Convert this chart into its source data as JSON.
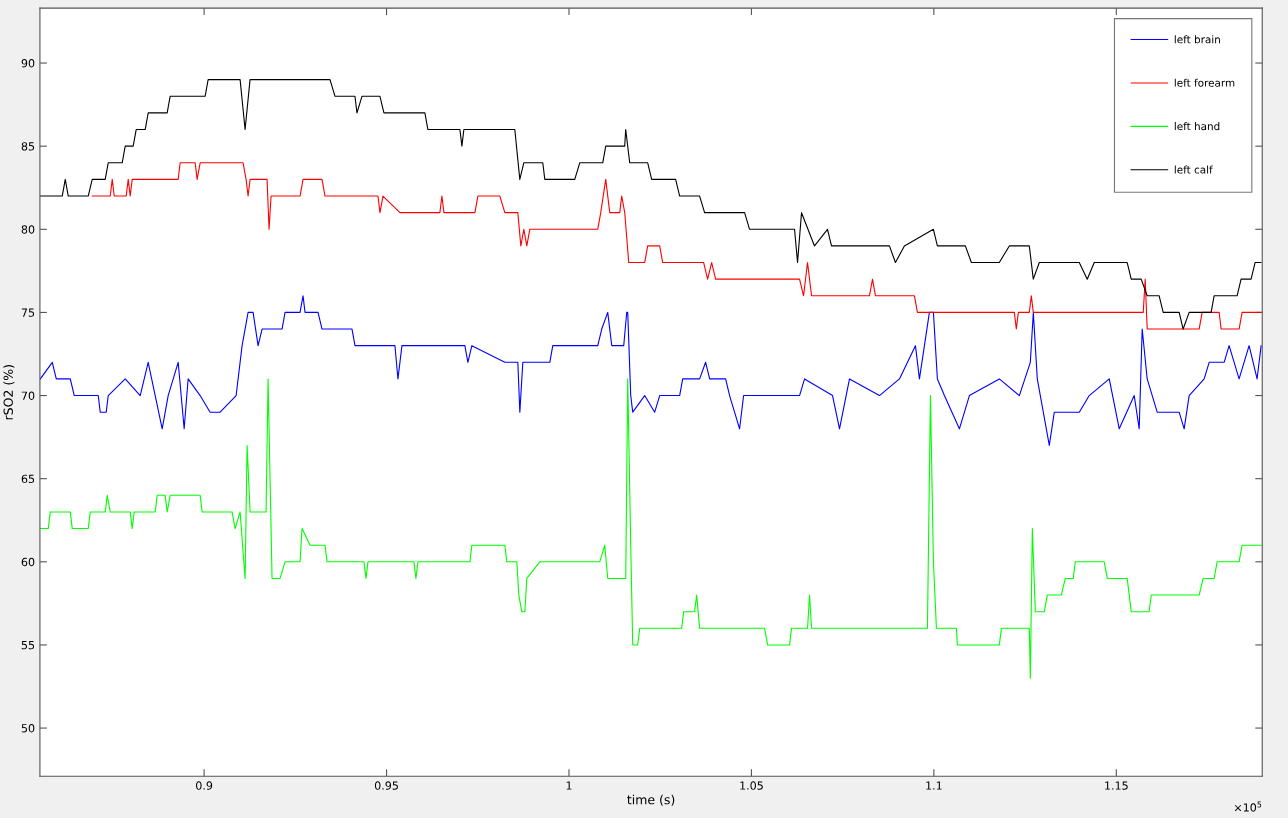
{
  "chart_data": {
    "type": "line",
    "xlabel": "time (s)",
    "ylabel": "rSO2 (%)",
    "xlim": [
      0.855,
      1.19
    ],
    "ylim": [
      47.1,
      93.3
    ],
    "xticks": [
      0.9,
      0.95,
      1,
      1.05,
      1.1,
      1.15
    ],
    "yticks": [
      50,
      55,
      60,
      65,
      70,
      75,
      80,
      85,
      90
    ],
    "annotations": [
      "×10$^{5}$"
    ],
    "grid": false,
    "legend": "top right",
    "marker": "none",
    "line_style": "solid",
    "series": [
      {
        "name": "left brain",
        "color": "#0000ff",
        "x": [
          0.8551,
          0.85839,
          0.85948,
          0.86332,
          0.86441,
          0.87098,
          0.87153,
          0.87317,
          0.87372,
          0.87838,
          0.88248,
          0.88467,
          0.88659,
          0.88851,
          0.89015,
          0.89289,
          0.89453,
          0.89562,
          0.89891,
          0.90165,
          0.90439,
          0.90877,
          0.91041,
          0.91205,
          0.91342,
          0.91479,
          0.91589,
          0.92136,
          0.92218,
          0.92629,
          0.92711,
          0.92766,
          0.93122,
          0.93231,
          0.94053,
          0.94135,
          0.9523,
          0.95312,
          0.95422,
          0.97147,
          0.97229,
          0.97338,
          0.98242,
          0.98598,
          0.98653,
          0.98735,
          0.99474,
          0.99556,
          1.00788,
          1.00898,
          1.01062,
          1.01172,
          1.015,
          1.01582,
          1.0161,
          1.01692,
          1.01747,
          1.02075,
          1.02349,
          1.02486,
          1.03033,
          1.03116,
          1.03581,
          1.03745,
          1.03855,
          1.04293,
          1.04402,
          1.04676,
          1.04786,
          1.06319,
          1.06456,
          1.07223,
          1.07414,
          1.07688,
          1.08509,
          1.09057,
          1.09495,
          1.09605,
          1.09878,
          1.09988,
          1.10097,
          1.10289,
          1.107,
          1.10974,
          1.11795,
          1.12343,
          1.12644,
          1.12726,
          1.12835,
          1.13164,
          1.13301,
          1.13985,
          1.14259,
          1.14807,
          1.15081,
          1.15491,
          1.15628,
          1.1571,
          1.15847,
          1.16121,
          1.16723,
          1.1686,
          1.16997,
          1.17408,
          1.17545,
          1.17956,
          1.18092,
          1.18366,
          1.1864,
          1.18859,
          1.18969
        ],
        "values": [
          71,
          72,
          71,
          71,
          70,
          70,
          69,
          69,
          70,
          71,
          70,
          72,
          70,
          68,
          70,
          72,
          68,
          71,
          70,
          69,
          69,
          70,
          73,
          75,
          75,
          73,
          74,
          74,
          75,
          75,
          76,
          75,
          75,
          74,
          74,
          73,
          73,
          71,
          73,
          73,
          72,
          73,
          72,
          72,
          69,
          72,
          72,
          73,
          73,
          74,
          75,
          73,
          73,
          75,
          75,
          70,
          69,
          70,
          69,
          70,
          70,
          71,
          71,
          72,
          71,
          71,
          70,
          68,
          70,
          70,
          71,
          70,
          68,
          71,
          70,
          71,
          73,
          71,
          75,
          75,
          71,
          70,
          68,
          70,
          71,
          70,
          72,
          75,
          71,
          67,
          69,
          69,
          70,
          71,
          68,
          70,
          68,
          74,
          71,
          69,
          69,
          68,
          70,
          71,
          72,
          72,
          73,
          71,
          73,
          71,
          73
        ]
      },
      {
        "name": "left forearm",
        "color": "#ff0000",
        "x": [
          0.86934,
          0.87427,
          0.87482,
          0.87536,
          0.87865,
          0.8792,
          0.87974,
          0.88029,
          0.89289,
          0.89343,
          0.89754,
          0.89809,
          0.89891,
          0.91068,
          0.9115,
          0.91205,
          0.9126,
          0.91725,
          0.9178,
          0.91835,
          0.92629,
          0.92711,
          0.93231,
          0.93314,
          0.94765,
          0.94819,
          0.94902,
          0.95367,
          0.96462,
          0.96517,
          0.96572,
          0.97421,
          0.97503,
          0.98105,
          0.98242,
          0.98598,
          0.9868,
          0.98762,
          0.98844,
          0.98926,
          1.00788,
          1.0087,
          1.01007,
          1.01117,
          1.01391,
          1.01445,
          1.01528,
          1.01637,
          1.02075,
          1.02157,
          1.02486,
          1.02568,
          1.03691,
          1.038,
          1.0391,
          1.04019,
          1.06319,
          1.06429,
          1.06538,
          1.06648,
          1.08236,
          1.08318,
          1.084,
          1.09468,
          1.0955,
          1.12206,
          1.1226,
          1.12315,
          1.12616,
          1.12671,
          1.12726,
          1.15738,
          1.15792,
          1.15847,
          1.17271,
          1.17353,
          1.17819,
          1.17873,
          1.18366,
          1.18448,
          1.18969
        ],
        "values": [
          82,
          82,
          83,
          82,
          82,
          83,
          82,
          83,
          83,
          84,
          84,
          83,
          84,
          84,
          83,
          82,
          83,
          83,
          80,
          82,
          82,
          83,
          83,
          82,
          82,
          81,
          82,
          81,
          81,
          82,
          81,
          81,
          82,
          82,
          81,
          81,
          79,
          80,
          79,
          80,
          80,
          81,
          83,
          81,
          81,
          82,
          81,
          78,
          78,
          79,
          79,
          78,
          78,
          77,
          78,
          77,
          77,
          76,
          78,
          76,
          76,
          77,
          76,
          76,
          75,
          75,
          74,
          75,
          75,
          76,
          75,
          75,
          77,
          74,
          74,
          75,
          75,
          74,
          74,
          75,
          75
        ]
      },
      {
        "name": "left hand",
        "color": "#00ff00",
        "x": [
          0.8551,
          0.85729,
          0.85784,
          0.86332,
          0.86386,
          0.86824,
          0.86879,
          0.8729,
          0.87345,
          0.87427,
          0.87974,
          0.88029,
          0.88084,
          0.88659,
          0.88714,
          0.88933,
          0.88987,
          0.8907,
          0.89891,
          0.89946,
          0.90767,
          0.90849,
          0.90986,
          0.91123,
          0.91178,
          0.9126,
          0.91698,
          0.91753,
          0.91862,
          0.92081,
          0.92218,
          0.92629,
          0.92684,
          0.92903,
          0.93314,
          0.93368,
          0.94381,
          0.94436,
          0.94491,
          0.9575,
          0.95805,
          0.9586,
          0.97284,
          0.97338,
          0.98242,
          0.98297,
          0.9857,
          0.98625,
          0.98707,
          0.9879,
          0.98844,
          0.992,
          1.00843,
          1.0098,
          1.01062,
          1.01555,
          1.0161,
          1.01692,
          1.01747,
          1.01883,
          1.01938,
          1.03088,
          1.03143,
          1.03444,
          1.03499,
          1.03581,
          1.05361,
          1.05443,
          1.06045,
          1.061,
          1.06538,
          1.06593,
          1.06648,
          1.09824,
          1.09906,
          1.09988,
          1.1007,
          1.10618,
          1.10645,
          1.11795,
          1.1185,
          1.12616,
          1.12644,
          1.12699,
          1.12781,
          1.13027,
          1.13109,
          1.13493,
          1.13602,
          1.13821,
          1.13876,
          1.1467,
          1.14752,
          1.15299,
          1.15409,
          1.15902,
          1.15957,
          1.17271,
          1.17381,
          1.17681,
          1.17764,
          1.18366,
          1.18448,
          1.18969
        ],
        "values": [
          62,
          62,
          63,
          63,
          62,
          62,
          63,
          63,
          64,
          63,
          63,
          62,
          63,
          63,
          64,
          64,
          63,
          64,
          64,
          63,
          63,
          62,
          63,
          59,
          67,
          63,
          63,
          71,
          59,
          59,
          60,
          60,
          62,
          61,
          61,
          60,
          60,
          59,
          60,
          60,
          59,
          60,
          60,
          61,
          61,
          60,
          60,
          58,
          57,
          57,
          59,
          60,
          60,
          61,
          59,
          59,
          71,
          61,
          55,
          55,
          56,
          56,
          57,
          57,
          58,
          56,
          56,
          55,
          55,
          56,
          56,
          58,
          56,
          56,
          70,
          60,
          56,
          56,
          55,
          55,
          56,
          56,
          53,
          62,
          57,
          57,
          58,
          58,
          59,
          59,
          60,
          60,
          59,
          59,
          57,
          57,
          58,
          58,
          59,
          59,
          60,
          60,
          61,
          61
        ]
      },
      {
        "name": "left calf",
        "color": "#000000",
        "x": [
          0.8551,
          0.86112,
          0.86194,
          0.86276,
          0.86824,
          0.86933,
          0.87289,
          0.87372,
          0.87755,
          0.87837,
          0.88056,
          0.88138,
          0.88385,
          0.88467,
          0.88987,
          0.89069,
          0.90027,
          0.9011,
          0.90986,
          0.91123,
          0.91259,
          0.9345,
          0.93587,
          0.94134,
          0.94189,
          0.94326,
          0.94819,
          0.94928,
          0.96051,
          0.96133,
          0.9701,
          0.97065,
          0.97119,
          0.98515,
          0.98652,
          0.98762,
          0.99282,
          0.99337,
          1.00158,
          1.00295,
          1.00925,
          1.01007,
          1.01527,
          1.01554,
          1.01664,
          1.02157,
          1.02266,
          1.02923,
          1.03033,
          1.0358,
          1.03717,
          1.04813,
          1.04949,
          1.06182,
          1.06264,
          1.06373,
          1.06729,
          1.07085,
          1.07195,
          1.08783,
          1.08947,
          1.09193,
          1.09987,
          1.10097,
          1.10864,
          1.11028,
          1.11794,
          1.12068,
          1.12616,
          1.12725,
          1.1289,
          1.13985,
          1.14204,
          1.14396,
          1.15299,
          1.15409,
          1.15682,
          1.15847,
          1.16175,
          1.16285,
          1.16723,
          1.16832,
          1.16997,
          1.17599,
          1.17681,
          1.18311,
          1.1842,
          1.18694,
          1.18804,
          1.18968
        ],
        "values": [
          82,
          82,
          83,
          82,
          82,
          83,
          83,
          84,
          84,
          85,
          85,
          86,
          86,
          87,
          87,
          88,
          88,
          89,
          89,
          86,
          89,
          89,
          88,
          88,
          87,
          88,
          88,
          87,
          87,
          86,
          86,
          85,
          86,
          86,
          83,
          84,
          84,
          83,
          83,
          84,
          84,
          85,
          85,
          86,
          84,
          84,
          83,
          83,
          82,
          82,
          81,
          81,
          80,
          80,
          78,
          81,
          79,
          80,
          79,
          79,
          78,
          79,
          80,
          79,
          79,
          78,
          78,
          79,
          79,
          77,
          78,
          78,
          77,
          78,
          78,
          77,
          77,
          76,
          76,
          75,
          75,
          74,
          75,
          75,
          76,
          76,
          77,
          77,
          78,
          78
        ]
      }
    ]
  }
}
